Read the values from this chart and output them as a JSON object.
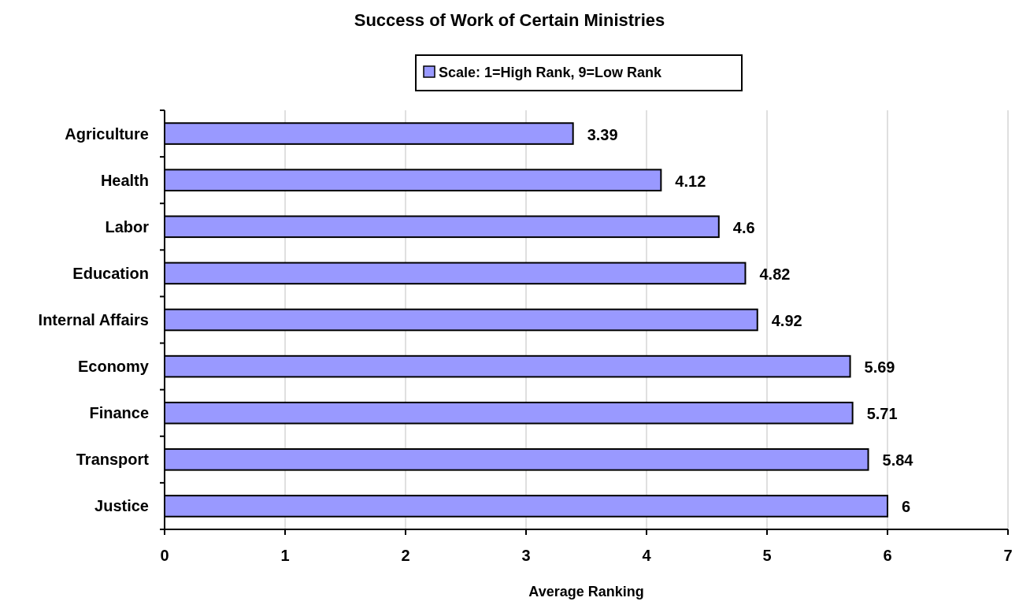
{
  "chart_data": {
    "type": "bar",
    "orientation": "horizontal",
    "title": "Success of Work of Certain Ministries",
    "xlabel": "Average Ranking",
    "categories": [
      "Agriculture",
      "Health",
      "Labor",
      "Education",
      "Internal Affairs",
      "Economy",
      "Finance",
      "Transport",
      "Justice"
    ],
    "series": [
      {
        "name": "Scale: 1=High Rank, 9=Low Rank",
        "color": "#9999ff",
        "values": [
          3.39,
          4.12,
          4.6,
          4.82,
          4.92,
          5.69,
          5.71,
          5.84,
          6
        ]
      }
    ],
    "xlim": [
      0,
      7
    ],
    "xticks": [
      0,
      1,
      2,
      3,
      4,
      5,
      6,
      7
    ],
    "grid": "x",
    "legend": "top",
    "data_labels": true
  }
}
